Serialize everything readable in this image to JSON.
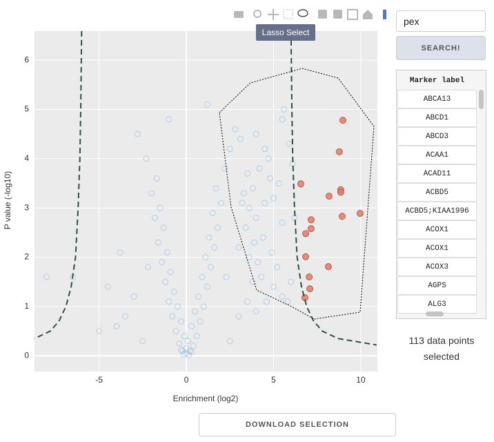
{
  "toolbar": {
    "tooltip": "Lasso Select"
  },
  "chart_data": {
    "type": "scatter",
    "xlabel": "Enrichment (log2)",
    "ylabel": "P value (-log10)",
    "xlim": [
      -8.7,
      10.95
    ],
    "ylim": [
      -0.32,
      6.59
    ],
    "xticks": [
      -5,
      0,
      5,
      10
    ],
    "yticks": [
      0,
      1,
      2,
      3,
      4,
      5,
      6
    ],
    "grid": true,
    "series": [
      {
        "mode": "markers",
        "color": "#6fa8dc",
        "x": [
          0,
          0.2,
          -0.2,
          0.4,
          -0.4,
          0.1,
          -0.1,
          0.6,
          -0.6,
          0.3,
          -0.3,
          0.8,
          -0.8,
          0.5,
          -0.5,
          1.0,
          -1.0,
          0.7,
          -0.7,
          1.2,
          -1.2,
          0.9,
          -0.9,
          1.4,
          -1.4,
          1.1,
          -1.1,
          1.6,
          -1.6,
          1.3,
          -1.3,
          1.8,
          -1.8,
          1.5,
          -1.5,
          2.0,
          -2.0,
          1.7,
          -1.7,
          2.2,
          -2.3,
          2.5,
          -2.8,
          2.8,
          -1.0,
          1.2,
          -3.0,
          -3.5,
          -4.0,
          -5.0,
          3.0,
          3.5,
          4.0,
          2.5,
          -2.5,
          -6.5,
          -4.5,
          -2.2,
          2.3,
          0.0,
          0.15,
          -0.15,
          0.3,
          -0.3,
          -8.0,
          -3.8,
          3.1,
          4.0,
          4.5,
          5.6,
          5.5,
          3.5,
          4.2,
          3.8,
          4.8,
          5.3,
          3.3,
          4.5,
          3.6,
          5.0,
          4.0,
          3.4,
          5.5,
          3.9,
          4.4,
          3.6,
          4.1,
          5.2,
          4.3,
          3.8,
          5.0,
          5.5,
          4.6,
          6.0,
          5.8,
          6.2,
          6.1,
          5.9,
          3.2,
          4.7,
          3.0,
          4.9
        ],
        "values": [
          0.05,
          0.1,
          0.1,
          0.2,
          0.25,
          0.3,
          0.4,
          0.4,
          0.5,
          0.6,
          0.7,
          0.7,
          0.8,
          0.9,
          1.0,
          1.0,
          1.1,
          1.2,
          1.3,
          1.4,
          1.5,
          1.6,
          1.7,
          1.8,
          1.9,
          2.0,
          2.1,
          2.2,
          2.3,
          2.4,
          2.6,
          2.6,
          2.8,
          2.9,
          3.0,
          3.1,
          3.3,
          3.4,
          3.6,
          3.8,
          4.0,
          4.2,
          4.5,
          4.6,
          4.8,
          5.1,
          1.2,
          0.8,
          0.6,
          0.5,
          0.8,
          1.1,
          0.9,
          0.3,
          0.3,
          1.6,
          1.4,
          1.8,
          1.6,
          0.15,
          0.02,
          0.03,
          0.08,
          0.12,
          1.6,
          2.1,
          4.4,
          4.5,
          4.2,
          5.0,
          4.8,
          3.7,
          3.8,
          3.4,
          3.6,
          3.5,
          3.3,
          3.1,
          3.0,
          3.2,
          2.8,
          2.6,
          2.7,
          2.3,
          2.4,
          2.0,
          1.9,
          1.8,
          1.6,
          1.5,
          1.4,
          1.2,
          1.1,
          1.5,
          1.1,
          2.8,
          3.9,
          4.3,
          3.1,
          4.0,
          2.2,
          2.1
        ]
      },
      {
        "mode": "markers",
        "color": "#e07b68",
        "x": [
          8.97,
          8.77,
          6.56,
          8.85,
          8.85,
          8.18,
          9.96,
          8.93,
          7.15,
          7.15,
          6.84,
          6.84,
          8.14,
          7.04,
          7.08,
          6.8
        ],
        "values": [
          4.78,
          4.14,
          3.49,
          3.37,
          3.32,
          3.24,
          2.89,
          2.83,
          2.76,
          2.58,
          2.48,
          2.01,
          1.81,
          1.6,
          1.36,
          1.18
        ]
      },
      {
        "mode": "lines",
        "color": "#2f4f3f",
        "x": [
          -6.0,
          -6.05,
          -6.1,
          -6.2,
          -6.35,
          -6.6,
          -6.9,
          -7.3,
          -7.8,
          -8.7
        ],
        "values": [
          6.59,
          5,
          4,
          3,
          2,
          1.4,
          1.0,
          0.7,
          0.5,
          0.35
        ]
      },
      {
        "mode": "lines",
        "color": "#2f4f3f",
        "x": [
          6.0,
          6.05,
          6.1,
          6.2,
          6.35,
          6.6,
          6.9,
          7.3,
          7.8,
          8.7,
          10.9
        ],
        "values": [
          6.59,
          5,
          4,
          3,
          2,
          1.4,
          1.0,
          0.7,
          0.5,
          0.35,
          0.22
        ]
      }
    ]
  },
  "search": {
    "query": "pex",
    "button": "SEARCH!"
  },
  "table": {
    "header": "Marker label",
    "rows": [
      "ABCA13",
      "ABCD1",
      "ABCD3",
      "ACAA1",
      "ACAD11",
      "ACBD5",
      "ACBD5;KIAA1996",
      "ACOX1",
      "ACOX1",
      "ACOX3",
      "AGPS",
      "ALG3"
    ]
  },
  "selection_text": "113 data points selected",
  "download_button": "DOWNLOAD SELECTION"
}
